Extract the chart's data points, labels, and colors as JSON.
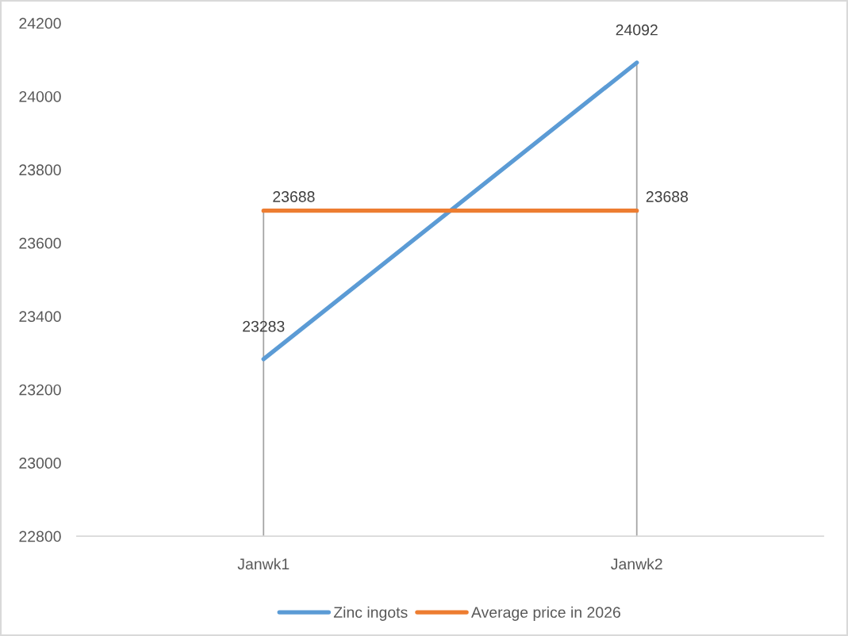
{
  "chart_data": {
    "type": "line",
    "categories": [
      "Janwk1",
      "Janwk2"
    ],
    "series": [
      {
        "name": "Zinc ingots",
        "color": "#5b9bd5",
        "values": [
          23283,
          24092
        ]
      },
      {
        "name": "Average price in 2026",
        "color": "#ed7d31",
        "values": [
          23688,
          23688
        ]
      }
    ],
    "ylim": [
      22800,
      24200
    ],
    "yticks": [
      22800,
      23000,
      23200,
      23400,
      23600,
      23800,
      24000,
      24200
    ],
    "ref_lines": [
      {
        "axis": "x",
        "value": "Janwk1",
        "color": "#a6a6a6"
      },
      {
        "axis": "x",
        "value": "Janwk2",
        "color": "#a6a6a6"
      }
    ],
    "data_labels": true,
    "grid": false,
    "legend": "bottom",
    "marker": "none",
    "line_style": "solid"
  }
}
